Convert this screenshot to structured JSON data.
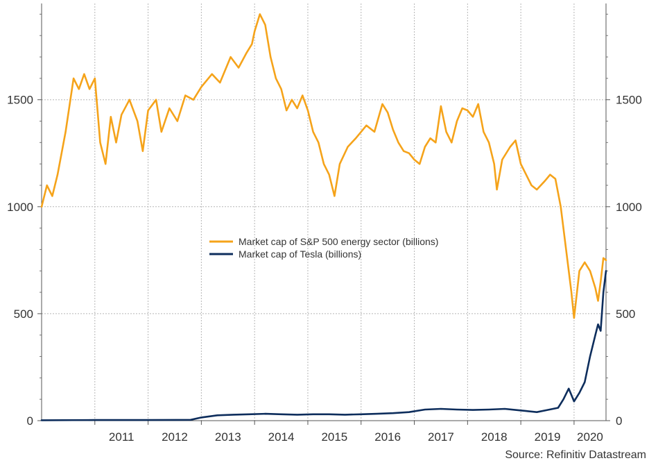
{
  "chart_data": {
    "type": "line",
    "title": "",
    "xlabel": "",
    "ylabel": "",
    "x_range": [
      2010.0,
      2020.6
    ],
    "ylim": [
      0,
      1950
    ],
    "y_ticks": [
      0,
      500,
      1000,
      1500
    ],
    "y_tick_labels": [
      "0",
      "500",
      "1000",
      "1500"
    ],
    "y_axis_right_mirror": true,
    "x_tick_labels": [
      "2011",
      "2012",
      "2013",
      "2014",
      "2015",
      "2016",
      "2017",
      "2018",
      "2019",
      "2020"
    ],
    "grid": true,
    "legend_position": "center",
    "series": [
      {
        "name": "Market cap of S&P 500 energy sector (billions)",
        "color": "#f5a31a",
        "points": [
          [
            2010.0,
            1000
          ],
          [
            2010.1,
            1100
          ],
          [
            2010.2,
            1050
          ],
          [
            2010.3,
            1150
          ],
          [
            2010.45,
            1350
          ],
          [
            2010.6,
            1600
          ],
          [
            2010.7,
            1550
          ],
          [
            2010.8,
            1620
          ],
          [
            2010.9,
            1550
          ],
          [
            2011.0,
            1600
          ],
          [
            2011.1,
            1300
          ],
          [
            2011.2,
            1200
          ],
          [
            2011.3,
            1420
          ],
          [
            2011.4,
            1300
          ],
          [
            2011.5,
            1430
          ],
          [
            2011.65,
            1500
          ],
          [
            2011.8,
            1400
          ],
          [
            2011.9,
            1260
          ],
          [
            2012.0,
            1450
          ],
          [
            2012.15,
            1500
          ],
          [
            2012.25,
            1350
          ],
          [
            2012.4,
            1460
          ],
          [
            2012.55,
            1400
          ],
          [
            2012.7,
            1520
          ],
          [
            2012.85,
            1500
          ],
          [
            2013.0,
            1560
          ],
          [
            2013.2,
            1620
          ],
          [
            2013.35,
            1580
          ],
          [
            2013.55,
            1700
          ],
          [
            2013.7,
            1650
          ],
          [
            2013.85,
            1720
          ],
          [
            2013.95,
            1760
          ],
          [
            2014.0,
            1820
          ],
          [
            2014.1,
            1900
          ],
          [
            2014.2,
            1850
          ],
          [
            2014.3,
            1700
          ],
          [
            2014.4,
            1600
          ],
          [
            2014.5,
            1550
          ],
          [
            2014.6,
            1450
          ],
          [
            2014.7,
            1500
          ],
          [
            2014.8,
            1460
          ],
          [
            2014.9,
            1520
          ],
          [
            2015.0,
            1450
          ],
          [
            2015.1,
            1350
          ],
          [
            2015.2,
            1300
          ],
          [
            2015.3,
            1200
          ],
          [
            2015.4,
            1150
          ],
          [
            2015.5,
            1050
          ],
          [
            2015.6,
            1200
          ],
          [
            2015.75,
            1280
          ],
          [
            2015.9,
            1320
          ],
          [
            2016.0,
            1350
          ],
          [
            2016.1,
            1380
          ],
          [
            2016.25,
            1350
          ],
          [
            2016.4,
            1480
          ],
          [
            2016.5,
            1440
          ],
          [
            2016.6,
            1360
          ],
          [
            2016.7,
            1300
          ],
          [
            2016.8,
            1260
          ],
          [
            2016.9,
            1250
          ],
          [
            2017.0,
            1220
          ],
          [
            2017.1,
            1200
          ],
          [
            2017.2,
            1280
          ],
          [
            2017.3,
            1320
          ],
          [
            2017.4,
            1300
          ],
          [
            2017.5,
            1470
          ],
          [
            2017.6,
            1350
          ],
          [
            2017.7,
            1300
          ],
          [
            2017.8,
            1400
          ],
          [
            2017.9,
            1460
          ],
          [
            2018.0,
            1450
          ],
          [
            2018.1,
            1420
          ],
          [
            2018.2,
            1480
          ],
          [
            2018.3,
            1350
          ],
          [
            2018.4,
            1300
          ],
          [
            2018.5,
            1200
          ],
          [
            2018.55,
            1080
          ],
          [
            2018.65,
            1220
          ],
          [
            2018.8,
            1280
          ],
          [
            2018.9,
            1310
          ],
          [
            2019.0,
            1200
          ],
          [
            2019.1,
            1150
          ],
          [
            2019.2,
            1100
          ],
          [
            2019.3,
            1080
          ],
          [
            2019.45,
            1120
          ],
          [
            2019.55,
            1150
          ],
          [
            2019.65,
            1130
          ],
          [
            2019.75,
            1000
          ],
          [
            2019.85,
            800
          ],
          [
            2019.95,
            600
          ],
          [
            2020.0,
            480
          ],
          [
            2020.1,
            700
          ],
          [
            2020.2,
            740
          ],
          [
            2020.3,
            700
          ],
          [
            2020.4,
            620
          ],
          [
            2020.45,
            560
          ],
          [
            2020.5,
            650
          ],
          [
            2020.55,
            760
          ],
          [
            2020.6,
            750
          ]
        ]
      },
      {
        "name": "Market cap of Tesla (billions)",
        "color": "#0d2d5c",
        "points": [
          [
            2010.0,
            2
          ],
          [
            2011.0,
            3
          ],
          [
            2012.0,
            3
          ],
          [
            2012.8,
            4
          ],
          [
            2013.0,
            15
          ],
          [
            2013.3,
            25
          ],
          [
            2013.6,
            28
          ],
          [
            2013.9,
            30
          ],
          [
            2014.2,
            32
          ],
          [
            2014.5,
            30
          ],
          [
            2014.8,
            28
          ],
          [
            2015.1,
            30
          ],
          [
            2015.4,
            30
          ],
          [
            2015.7,
            28
          ],
          [
            2016.0,
            30
          ],
          [
            2016.3,
            32
          ],
          [
            2016.6,
            35
          ],
          [
            2016.9,
            40
          ],
          [
            2017.2,
            52
          ],
          [
            2017.5,
            55
          ],
          [
            2017.8,
            52
          ],
          [
            2018.1,
            50
          ],
          [
            2018.4,
            52
          ],
          [
            2018.7,
            55
          ],
          [
            2018.9,
            50
          ],
          [
            2019.1,
            45
          ],
          [
            2019.3,
            40
          ],
          [
            2019.5,
            50
          ],
          [
            2019.7,
            60
          ],
          [
            2019.8,
            100
          ],
          [
            2019.9,
            150
          ],
          [
            2019.95,
            120
          ],
          [
            2020.0,
            90
          ],
          [
            2020.1,
            130
          ],
          [
            2020.2,
            180
          ],
          [
            2020.3,
            300
          ],
          [
            2020.4,
            400
          ],
          [
            2020.45,
            450
          ],
          [
            2020.5,
            420
          ],
          [
            2020.55,
            600
          ],
          [
            2020.6,
            700
          ]
        ]
      }
    ],
    "source": "Source: Refinitiv Datastream"
  }
}
